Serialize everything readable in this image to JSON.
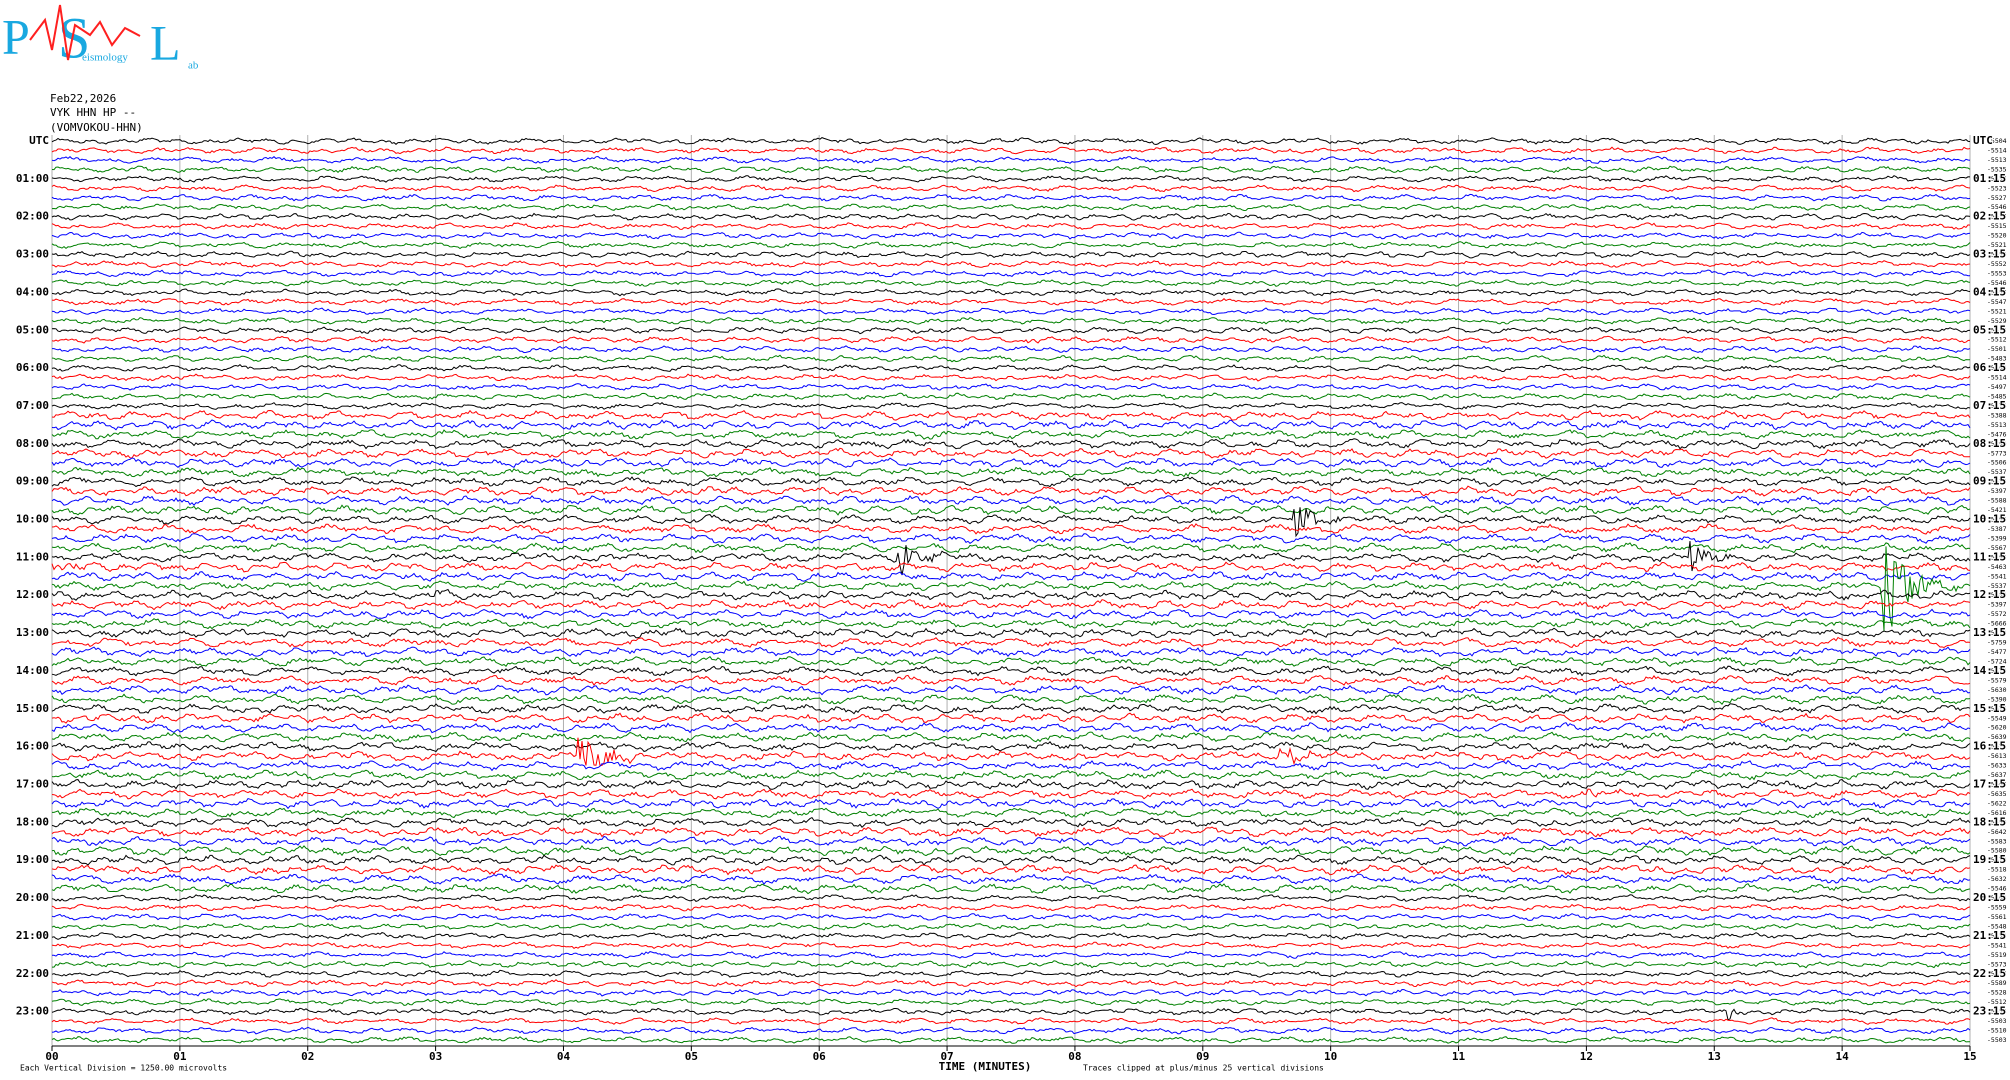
{
  "header": {
    "date": "Feb22,2026",
    "station": "VYK HHN HP --",
    "channel": "(VOMVOKOU-HHN)"
  },
  "logo": {
    "p": "P",
    "s": "S",
    "l": "L",
    "seismology": "eismology",
    "lab": "ab"
  },
  "chart_data": {
    "type": "helicorder",
    "left_labels": [
      "UTC",
      "01:00",
      "02:00",
      "03:00",
      "04:00",
      "05:00",
      "06:00",
      "07:00",
      "08:00",
      "09:00",
      "10:00",
      "11:00",
      "12:00",
      "13:00",
      "14:00",
      "15:00",
      "16:00",
      "17:00",
      "18:00",
      "19:00",
      "20:00",
      "21:00",
      "22:00",
      "23:00"
    ],
    "right_labels": [
      "UTC",
      "01:15",
      "02:15",
      "03:15",
      "04:15",
      "05:15",
      "06:15",
      "07:15",
      "08:15",
      "09:15",
      "10:15",
      "11:15",
      "12:15",
      "13:15",
      "14:15",
      "15:15",
      "16:15",
      "17:15",
      "18:15",
      "19:15",
      "20:15",
      "21:15",
      "22:15",
      "23:15"
    ],
    "trace_offsets": [
      -5504,
      -5514,
      -5513,
      -5535,
      -5537,
      -5523,
      -5527,
      -5546,
      -5517,
      -5515,
      -5520,
      -5521,
      -5559,
      -5552,
      -5553,
      -5546,
      -5557,
      -5547,
      -5521,
      -5529,
      -5513,
      -5512,
      -5501,
      -5483,
      -5502,
      -5514,
      -5497,
      -5485,
      -5474,
      -5388,
      -5513,
      -5476,
      -5390,
      -5773,
      -5506,
      -5537,
      -5523,
      -5397,
      -5588,
      -5421,
      -5496,
      -5387,
      -5399,
      -5567,
      -5495,
      -5463,
      -5541,
      -5537,
      -5589,
      -5397,
      -5572,
      -5666,
      -5413,
      -5759,
      -5477,
      -5724,
      -5579,
      -5579,
      -5630,
      -5390,
      -5674,
      -5549,
      -5620,
      -5639,
      -5621,
      -5613,
      -5633,
      -5637,
      -5667,
      -5635,
      -5622,
      -5616,
      -5559,
      -5642,
      -5583,
      -5580,
      -5579,
      -5518,
      -5632,
      -5546,
      -5563,
      -5559,
      -5561,
      -5548,
      -5533,
      -5541,
      -5519,
      -5573,
      -5527,
      -5589,
      -5528,
      -5512,
      -5558,
      -5503,
      -5510,
      -5503
    ],
    "trace_colors": [
      "#000000",
      "#ff0000",
      "#0000ff",
      "#008000"
    ],
    "xlim": [
      0,
      15
    ],
    "xticks": [
      {
        "value": 0,
        "label": "00"
      },
      {
        "value": 1,
        "label": "01"
      },
      {
        "value": 2,
        "label": "02"
      },
      {
        "value": 3,
        "label": "03"
      },
      {
        "value": 4,
        "label": "04"
      },
      {
        "value": 5,
        "label": "05"
      },
      {
        "value": 6,
        "label": "06"
      },
      {
        "value": 7,
        "label": "07"
      },
      {
        "value": 8,
        "label": "08"
      },
      {
        "value": 9,
        "label": "09"
      },
      10,
      11,
      12,
      13,
      14,
      15
    ],
    "xlabel": "TIME (MINUTES)",
    "scale_note": "Each Vertical Division = 1250.00 microvolts",
    "clip_note": "Traces clipped at plus/minus 25 vertical divisions",
    "grid": true
  }
}
